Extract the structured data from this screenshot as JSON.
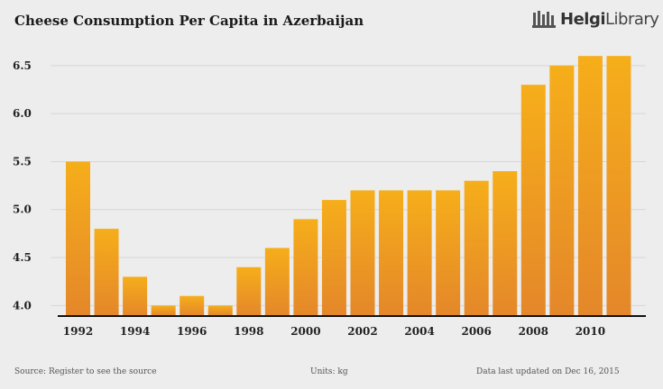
{
  "header": {
    "title": "Cheese Consumption Per Capita in Azerbaijan",
    "brand_main": "Helgi",
    "brand_rest": "Library"
  },
  "footer": {
    "source": "Source: Register to see the source",
    "units": "Units: kg",
    "updated": "Data last updated on Dec 16, 2015"
  },
  "colors": {
    "bar_top": "#f6ae1a",
    "bar_bottom": "#e4872a",
    "grid": "#d6d6d6",
    "axis": "#111111"
  },
  "chart_data": {
    "type": "bar",
    "title": "Cheese Consumption Per Capita in Azerbaijan",
    "xlabel": "",
    "ylabel": "",
    "categories": [
      "1992",
      "1993",
      "1994",
      "1995",
      "1996",
      "1997",
      "1998",
      "1999",
      "2000",
      "2001",
      "2002",
      "2003",
      "2004",
      "2005",
      "2006",
      "2007",
      "2008",
      "2009",
      "2010",
      "2011"
    ],
    "values": [
      5.5,
      4.8,
      4.3,
      4.0,
      4.1,
      4.0,
      4.4,
      4.6,
      4.9,
      5.1,
      5.2,
      5.2,
      5.2,
      5.2,
      5.3,
      5.4,
      6.3,
      6.5,
      6.6,
      6.6
    ],
    "x_tick_labels": [
      "1992",
      "1994",
      "1996",
      "1998",
      "2000",
      "2002",
      "2004",
      "2006",
      "2008",
      "2010"
    ],
    "y_ticks": [
      "4.0",
      "4.5",
      "5.0",
      "5.5",
      "6.0",
      "6.5"
    ],
    "ylim": [
      3.9,
      6.7
    ],
    "grid": true
  }
}
